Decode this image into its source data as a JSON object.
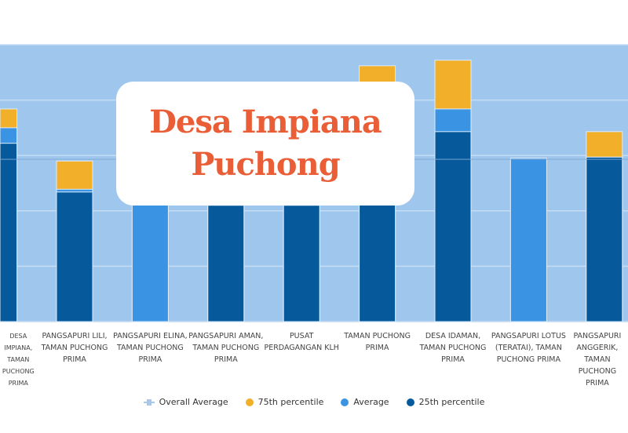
{
  "overlay_title": {
    "line1": "Desa Impiana",
    "line2": "Puchong"
  },
  "chart_data": {
    "type": "bar",
    "title": "",
    "xlabel": "",
    "ylabel": "",
    "ylim": [
      0,
      5
    ],
    "grid": true,
    "legend_position": "bottom",
    "categories": [
      "Desa Impiana, Taman Puchong Prima",
      "Pangsapuri Lili, Taman Puchong Prima",
      "Pangsapuri Elina, Taman Puchong Prima",
      "Pangsapuri Aman, Taman Puchong Prima",
      "Pusat Perdagangan KLH",
      "Taman Puchong Prima",
      "Desa Idaman, Taman Puchong Prima",
      "Pangsapuri Lotus (Teratai), Taman Puchong Prima",
      "Pangsapuri Anggerik, Taman Puchong Prima"
    ],
    "series": [
      {
        "name": "75th percentile",
        "color": "#f2b02a",
        "values": [
          3.84,
          2.9,
          2.22,
          2.1,
          2.1,
          4.62,
          4.72,
          2.95,
          3.43
        ]
      },
      {
        "name": "Average",
        "color": "#3a93e3",
        "values": [
          3.5,
          2.39,
          2.22,
          2.1,
          2.1,
          2.95,
          3.84,
          2.95,
          2.97
        ]
      },
      {
        "name": "25th percentile",
        "color": "#065a9b",
        "values": [
          3.22,
          2.34,
          null,
          2.1,
          2.1,
          2.79,
          3.43,
          null,
          2.97
        ]
      }
    ],
    "overall_average": {
      "name": "Overall Average",
      "color": "#a9c8e8",
      "value": 2.93
    },
    "legend": [
      "Overall Average",
      "75th percentile",
      "Average",
      "25th percentile"
    ]
  }
}
